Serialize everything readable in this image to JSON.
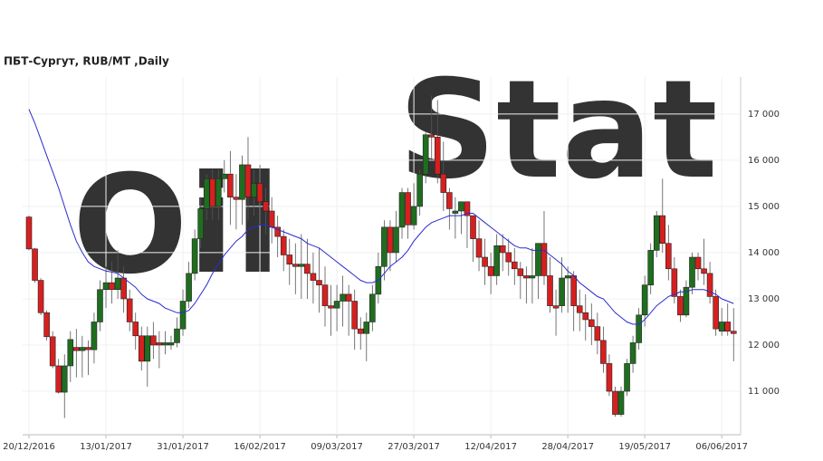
{
  "chart_data": {
    "type": "candlestick",
    "title": "ПБТ-Сургут,  RUB/MT ,Daily",
    "watermark": [
      "Oil",
      "Stat"
    ],
    "ylim": [
      10060,
      17800
    ],
    "yticks": [
      {
        "value": 11000,
        "label": "11 000"
      },
      {
        "value": 12000,
        "label": "12 000"
      },
      {
        "value": 13000,
        "label": "13 000"
      },
      {
        "value": 14000,
        "label": "14 000"
      },
      {
        "value": 15000,
        "label": "15 000"
      },
      {
        "value": 16000,
        "label": "16 000"
      },
      {
        "value": 17000,
        "label": "17 000"
      }
    ],
    "xticks": [
      {
        "value": 0,
        "label": "20/12/2016"
      },
      {
        "value": 13,
        "label": "13/01/2017"
      },
      {
        "value": 26,
        "label": "31/01/2017"
      },
      {
        "value": 39,
        "label": "16/02/2017"
      },
      {
        "value": 52,
        "label": "09/03/2017"
      },
      {
        "value": 65,
        "label": "27/03/2017"
      },
      {
        "value": 78,
        "label": "12/04/2017"
      },
      {
        "value": 91,
        "label": "28/04/2017"
      },
      {
        "value": 104,
        "label": "19/05/2017"
      },
      {
        "value": 117,
        "label": "06/06/2017"
      }
    ],
    "up_color": "#1f6e1f",
    "down_color": "#d62020",
    "ma_color": "#2b2bd0",
    "candles": [
      {
        "open": 14770,
        "high": 14800,
        "low": 14050,
        "close": 14080
      },
      {
        "open": 14080,
        "high": 14100,
        "low": 13350,
        "close": 13400
      },
      {
        "open": 13400,
        "high": 13450,
        "low": 12650,
        "close": 12700
      },
      {
        "open": 12700,
        "high": 12750,
        "low": 12100,
        "close": 12180
      },
      {
        "open": 12180,
        "high": 12300,
        "low": 11500,
        "close": 11550
      },
      {
        "open": 11550,
        "high": 11700,
        "low": 10950,
        "close": 10980
      },
      {
        "open": 10980,
        "high": 11800,
        "low": 10420,
        "close": 11550
      },
      {
        "open": 11550,
        "high": 12300,
        "low": 11200,
        "close": 12120
      },
      {
        "open": 11950,
        "high": 12350,
        "low": 11300,
        "close": 11880
      },
      {
        "open": 11880,
        "high": 12200,
        "low": 11300,
        "close": 11950
      },
      {
        "open": 11950,
        "high": 12100,
        "low": 11350,
        "close": 11900
      },
      {
        "open": 11900,
        "high": 12700,
        "low": 11600,
        "close": 12500
      },
      {
        "open": 12500,
        "high": 13400,
        "low": 12300,
        "close": 13200
      },
      {
        "open": 13200,
        "high": 13700,
        "low": 12800,
        "close": 13350
      },
      {
        "open": 13350,
        "high": 13800,
        "low": 12900,
        "close": 13200
      },
      {
        "open": 13200,
        "high": 14050,
        "low": 13000,
        "close": 13450
      },
      {
        "open": 13450,
        "high": 13700,
        "low": 12700,
        "close": 13000
      },
      {
        "open": 13000,
        "high": 13200,
        "low": 12300,
        "close": 12500
      },
      {
        "open": 12500,
        "high": 12700,
        "low": 11900,
        "close": 12200
      },
      {
        "open": 12200,
        "high": 12400,
        "low": 11450,
        "close": 11650
      },
      {
        "open": 11650,
        "high": 12400,
        "low": 11100,
        "close": 12200
      },
      {
        "open": 12200,
        "high": 12500,
        "low": 11700,
        "close": 12000
      },
      {
        "open": 12050,
        "high": 12300,
        "low": 11500,
        "close": 12000
      },
      {
        "open": 12000,
        "high": 12300,
        "low": 11800,
        "close": 12050
      },
      {
        "open": 12000,
        "high": 12200,
        "low": 11900,
        "close": 12050
      },
      {
        "open": 12050,
        "high": 12600,
        "low": 11950,
        "close": 12350
      },
      {
        "open": 12350,
        "high": 13200,
        "low": 12200,
        "close": 12950
      },
      {
        "open": 12950,
        "high": 13800,
        "low": 12800,
        "close": 13550
      },
      {
        "open": 13550,
        "high": 14500,
        "low": 13400,
        "close": 14300
      },
      {
        "open": 14300,
        "high": 15200,
        "low": 14100,
        "close": 14950
      },
      {
        "open": 14950,
        "high": 15700,
        "low": 14700,
        "close": 15600
      },
      {
        "open": 15600,
        "high": 15800,
        "low": 14700,
        "close": 15000
      },
      {
        "open": 15000,
        "high": 15800,
        "low": 14700,
        "close": 15600
      },
      {
        "open": 15600,
        "high": 16000,
        "low": 15300,
        "close": 15700
      },
      {
        "open": 15700,
        "high": 16200,
        "low": 14600,
        "close": 15200
      },
      {
        "open": 15200,
        "high": 15700,
        "low": 14500,
        "close": 15150
      },
      {
        "open": 15150,
        "high": 16100,
        "low": 14600,
        "close": 15900
      },
      {
        "open": 15900,
        "high": 16500,
        "low": 14700,
        "close": 15200
      },
      {
        "open": 15200,
        "high": 15800,
        "low": 14800,
        "close": 15500
      },
      {
        "open": 15500,
        "high": 15900,
        "low": 14600,
        "close": 15100
      },
      {
        "open": 15100,
        "high": 15400,
        "low": 14400,
        "close": 14900
      },
      {
        "open": 14900,
        "high": 15200,
        "low": 14200,
        "close": 14550
      },
      {
        "open": 14550,
        "high": 14800,
        "low": 13900,
        "close": 14350
      },
      {
        "open": 14350,
        "high": 14500,
        "low": 13600,
        "close": 13950
      },
      {
        "open": 13950,
        "high": 14300,
        "low": 13300,
        "close": 13750
      },
      {
        "open": 13750,
        "high": 14200,
        "low": 13100,
        "close": 13700
      },
      {
        "open": 13700,
        "high": 14400,
        "low": 13000,
        "close": 13750
      },
      {
        "open": 13750,
        "high": 14300,
        "low": 13000,
        "close": 13550
      },
      {
        "open": 13550,
        "high": 14000,
        "low": 12900,
        "close": 13400
      },
      {
        "open": 13400,
        "high": 14100,
        "low": 12700,
        "close": 13300
      },
      {
        "open": 13300,
        "high": 13700,
        "low": 12400,
        "close": 12850
      },
      {
        "open": 12850,
        "high": 13300,
        "low": 12200,
        "close": 12800
      },
      {
        "open": 12800,
        "high": 13300,
        "low": 12300,
        "close": 12950
      },
      {
        "open": 12950,
        "high": 13500,
        "low": 12400,
        "close": 13100
      },
      {
        "open": 13100,
        "high": 13300,
        "low": 12200,
        "close": 12950
      },
      {
        "open": 12950,
        "high": 13200,
        "low": 11900,
        "close": 12350
      },
      {
        "open": 12350,
        "high": 12600,
        "low": 11900,
        "close": 12250
      },
      {
        "open": 12250,
        "high": 12700,
        "low": 11650,
        "close": 12500
      },
      {
        "open": 12500,
        "high": 13300,
        "low": 12300,
        "close": 13100
      },
      {
        "open": 13100,
        "high": 14000,
        "low": 12900,
        "close": 13700
      },
      {
        "open": 13700,
        "high": 14700,
        "low": 13400,
        "close": 14550
      },
      {
        "open": 14550,
        "high": 14700,
        "low": 13600,
        "close": 14000
      },
      {
        "open": 14000,
        "high": 14900,
        "low": 13800,
        "close": 14550
      },
      {
        "open": 14550,
        "high": 15400,
        "low": 14300,
        "close": 15300
      },
      {
        "open": 15300,
        "high": 15400,
        "low": 14300,
        "close": 14600
      },
      {
        "open": 14600,
        "high": 15500,
        "low": 14500,
        "close": 15000
      },
      {
        "open": 15000,
        "high": 15800,
        "low": 14800,
        "close": 15700
      },
      {
        "open": 15700,
        "high": 16600,
        "low": 15500,
        "close": 16550
      },
      {
        "open": 16550,
        "high": 17400,
        "low": 16000,
        "close": 16500
      },
      {
        "open": 16500,
        "high": 17300,
        "low": 15500,
        "close": 15700
      },
      {
        "open": 15700,
        "high": 16400,
        "low": 14900,
        "close": 15300
      },
      {
        "open": 15300,
        "high": 15400,
        "low": 14500,
        "close": 14950
      },
      {
        "open": 14850,
        "high": 15200,
        "low": 14300,
        "close": 14900
      },
      {
        "open": 14900,
        "high": 15100,
        "low": 14400,
        "close": 15100
      },
      {
        "open": 15100,
        "high": 15100,
        "low": 14100,
        "close": 14800
      },
      {
        "open": 14800,
        "high": 14800,
        "low": 13800,
        "close": 14300
      },
      {
        "open": 14300,
        "high": 14700,
        "low": 13600,
        "close": 13900
      },
      {
        "open": 13900,
        "high": 14300,
        "low": 13300,
        "close": 13700
      },
      {
        "open": 13700,
        "high": 14000,
        "low": 13100,
        "close": 13500
      },
      {
        "open": 13500,
        "high": 14400,
        "low": 13300,
        "close": 14150
      },
      {
        "open": 14150,
        "high": 14400,
        "low": 13600,
        "close": 14000
      },
      {
        "open": 14000,
        "high": 14300,
        "low": 13500,
        "close": 13800
      },
      {
        "open": 13800,
        "high": 14100,
        "low": 13300,
        "close": 13650
      },
      {
        "open": 13650,
        "high": 13800,
        "low": 13000,
        "close": 13500
      },
      {
        "open": 13500,
        "high": 13700,
        "low": 12900,
        "close": 13450
      },
      {
        "open": 13450,
        "high": 14100,
        "low": 12900,
        "close": 13500
      },
      {
        "open": 13500,
        "high": 14200,
        "low": 13000,
        "close": 14200
      },
      {
        "open": 14200,
        "high": 14900,
        "low": 13300,
        "close": 13500
      },
      {
        "open": 13500,
        "high": 13900,
        "low": 12700,
        "close": 12850
      },
      {
        "open": 12850,
        "high": 13200,
        "low": 12200,
        "close": 12800
      },
      {
        "open": 12850,
        "high": 13900,
        "low": 12700,
        "close": 13450
      },
      {
        "open": 13450,
        "high": 13700,
        "low": 12700,
        "close": 13500
      },
      {
        "open": 13500,
        "high": 13600,
        "low": 12300,
        "close": 12850
      },
      {
        "open": 12850,
        "high": 13200,
        "low": 12300,
        "close": 12700
      },
      {
        "open": 12700,
        "high": 13100,
        "low": 12100,
        "close": 12550
      },
      {
        "open": 12550,
        "high": 12900,
        "low": 12000,
        "close": 12400
      },
      {
        "open": 12400,
        "high": 12700,
        "low": 11800,
        "close": 12100
      },
      {
        "open": 12100,
        "high": 12400,
        "low": 11400,
        "close": 11600
      },
      {
        "open": 11600,
        "high": 11800,
        "low": 10900,
        "close": 11000
      },
      {
        "open": 11000,
        "high": 11100,
        "low": 10450,
        "close": 10500
      },
      {
        "open": 10500,
        "high": 11100,
        "low": 10450,
        "close": 11000
      },
      {
        "open": 11000,
        "high": 11700,
        "low": 10900,
        "close": 11600
      },
      {
        "open": 11600,
        "high": 12200,
        "low": 11400,
        "close": 12050
      },
      {
        "open": 12050,
        "high": 12800,
        "low": 11900,
        "close": 12650
      },
      {
        "open": 12650,
        "high": 13500,
        "low": 12400,
        "close": 13300
      },
      {
        "open": 13300,
        "high": 14200,
        "low": 13100,
        "close": 14050
      },
      {
        "open": 14050,
        "high": 14900,
        "low": 13900,
        "close": 14800
      },
      {
        "open": 14800,
        "high": 15600,
        "low": 14000,
        "close": 14200
      },
      {
        "open": 14200,
        "high": 14600,
        "low": 13400,
        "close": 13650
      },
      {
        "open": 13650,
        "high": 13900,
        "low": 12900,
        "close": 13050
      },
      {
        "open": 13050,
        "high": 13200,
        "low": 12500,
        "close": 12650
      },
      {
        "open": 12650,
        "high": 13400,
        "low": 12600,
        "close": 13250
      },
      {
        "open": 13250,
        "high": 14000,
        "low": 13100,
        "close": 13900
      },
      {
        "open": 13900,
        "high": 14000,
        "low": 13400,
        "close": 13650
      },
      {
        "open": 13650,
        "high": 14300,
        "low": 13300,
        "close": 13550
      },
      {
        "open": 13550,
        "high": 13800,
        "low": 12900,
        "close": 13050
      },
      {
        "open": 13050,
        "high": 13200,
        "low": 12200,
        "close": 12350
      },
      {
        "open": 12300,
        "high": 12800,
        "low": 12200,
        "close": 12500
      },
      {
        "open": 12500,
        "high": 12900,
        "low": 12200,
        "close": 12300
      },
      {
        "open": 12300,
        "high": 12800,
        "low": 11650,
        "close": 12250
      }
    ],
    "ma": [
      17100,
      16800,
      16450,
      16100,
      15750,
      15400,
      15000,
      14600,
      14250,
      14000,
      13800,
      13700,
      13650,
      13600,
      13580,
      13550,
      13450,
      13350,
      13250,
      13100,
      13000,
      12950,
      12900,
      12800,
      12750,
      12700,
      12700,
      12750,
      12900,
      13100,
      13300,
      13550,
      13750,
      13950,
      14100,
      14250,
      14350,
      14500,
      14550,
      14600,
      14600,
      14550,
      14500,
      14450,
      14400,
      14350,
      14300,
      14200,
      14150,
      14100,
      14000,
      13900,
      13800,
      13700,
      13600,
      13500,
      13400,
      13350,
      13350,
      13400,
      13550,
      13700,
      13800,
      13900,
      14050,
      14250,
      14400,
      14550,
      14650,
      14700,
      14750,
      14800,
      14800,
      14800,
      14850,
      14850,
      14750,
      14650,
      14550,
      14450,
      14350,
      14250,
      14150,
      14100,
      14100,
      14050,
      14050,
      14050,
      13950,
      13850,
      13750,
      13600,
      13500,
      13350,
      13250,
      13150,
      13050,
      13000,
      12850,
      12700,
      12600,
      12500,
      12450,
      12450,
      12550,
      12700,
      12850,
      12950,
      13050,
      13100,
      13150,
      13150,
      13200,
      13200,
      13200,
      13150,
      13100,
      13000,
      12950,
      12900
    ]
  }
}
